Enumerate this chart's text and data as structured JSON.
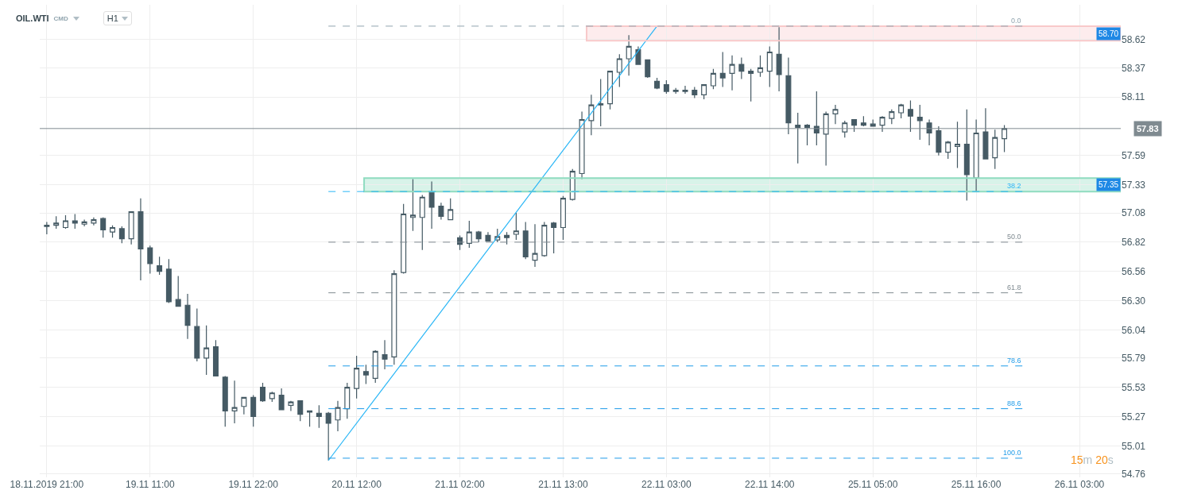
{
  "chart_data": {
    "type": "candlestick",
    "title": "OIL.WTI",
    "subtitle": "CMD",
    "annotations": [
      "H1",
      "15m 20s",
      {
        "text": "0.0",
        "y": 58.74
      },
      {
        "text": "38.2",
        "y": 57.27
      },
      {
        "text": "50.0",
        "y": 56.82
      },
      {
        "text": "61.8",
        "y": 56.37
      },
      {
        "text": "78.6",
        "y": 55.72
      },
      {
        "text": "88.6",
        "y": 55.34
      },
      {
        "text": "100.0",
        "y": 54.9
      }
    ],
    "categories": [
      "18.11.2019 21:00",
      null,
      null,
      null,
      null,
      null,
      null,
      null,
      null,
      null,
      null,
      "19.11 11:00",
      null,
      null,
      null,
      null,
      null,
      null,
      null,
      null,
      null,
      null,
      "19.11 22:00",
      null,
      null,
      null,
      null,
      null,
      null,
      null,
      null,
      null,
      null,
      "20.11 12:00",
      null,
      null,
      null,
      null,
      null,
      null,
      null,
      null,
      null,
      null,
      "21.11 02:00",
      null,
      null,
      null,
      null,
      null,
      null,
      null,
      null,
      null,
      null,
      "21.11 13:00",
      null,
      null,
      null,
      null,
      null,
      null,
      null,
      null,
      null,
      null,
      "22.11 03:00",
      null,
      null,
      null,
      null,
      null,
      null,
      null,
      null,
      null,
      null,
      "22.11 14:00",
      null,
      null,
      null,
      null,
      null,
      null,
      null,
      null,
      null,
      null,
      "25.11 05:00",
      null,
      null,
      null,
      null,
      null,
      null,
      null,
      null,
      null,
      null,
      "25.11 16:00",
      null,
      null,
      null,
      null,
      null,
      null,
      null,
      null,
      null,
      null,
      "26.11 03:00",
      null,
      null,
      null,
      null
    ],
    "color": "#455a64",
    "ohlc": [
      [
        56.96,
        57.0,
        56.89,
        56.97
      ],
      [
        56.97,
        57.05,
        56.94,
        56.99
      ],
      [
        56.95,
        57.06,
        56.94,
        57.01
      ],
      [
        57.01,
        57.07,
        56.94,
        56.99
      ],
      [
        56.98,
        57.02,
        56.96,
        57.0
      ],
      [
        56.99,
        57.04,
        56.97,
        57.02
      ],
      [
        57.03,
        57.04,
        56.86,
        56.93
      ],
      [
        56.91,
        56.97,
        56.86,
        56.95
      ],
      [
        56.94,
        56.96,
        56.81,
        56.85
      ],
      [
        56.85,
        57.09,
        56.8,
        57.09
      ],
      [
        57.09,
        57.21,
        56.48,
        56.76
      ],
      [
        56.77,
        56.79,
        56.54,
        56.63
      ],
      [
        56.61,
        56.69,
        56.53,
        56.56
      ],
      [
        56.58,
        56.67,
        56.28,
        56.29
      ],
      [
        56.31,
        56.52,
        56.25,
        56.25
      ],
      [
        56.26,
        56.36,
        55.96,
        56.08
      ],
      [
        56.07,
        56.23,
        55.76,
        55.79
      ],
      [
        55.79,
        56.08,
        55.64,
        55.88
      ],
      [
        55.89,
        55.95,
        55.63,
        55.63
      ],
      [
        55.62,
        55.63,
        55.18,
        55.32
      ],
      [
        55.32,
        55.59,
        55.21,
        55.35
      ],
      [
        55.36,
        55.44,
        55.29,
        55.44
      ],
      [
        55.44,
        55.46,
        55.18,
        55.27
      ],
      [
        55.53,
        55.57,
        55.4,
        55.41
      ],
      [
        55.43,
        55.49,
        55.4,
        55.48
      ],
      [
        55.46,
        55.52,
        55.33,
        55.33
      ],
      [
        55.37,
        55.41,
        55.32,
        55.4
      ],
      [
        55.41,
        55.41,
        55.23,
        55.29
      ],
      [
        55.32,
        55.32,
        55.18,
        55.31
      ],
      [
        55.3,
        55.37,
        55.17,
        55.27
      ],
      [
        55.3,
        55.31,
        54.88,
        55.21
      ],
      [
        55.24,
        55.41,
        55.14,
        55.35
      ],
      [
        55.34,
        55.57,
        55.25,
        55.53
      ],
      [
        55.52,
        55.81,
        55.43,
        55.7
      ],
      [
        55.67,
        55.73,
        55.56,
        55.64
      ],
      [
        55.61,
        55.86,
        55.57,
        55.85
      ],
      [
        55.82,
        55.95,
        55.69,
        55.78
      ],
      [
        55.8,
        56.57,
        55.73,
        56.54
      ],
      [
        56.55,
        57.16,
        56.54,
        57.07
      ],
      [
        57.04,
        57.38,
        56.92,
        57.06
      ],
      [
        57.04,
        57.24,
        56.75,
        57.22
      ],
      [
        57.26,
        57.36,
        56.94,
        57.13
      ],
      [
        57.14,
        57.17,
        57.02,
        57.05
      ],
      [
        57.02,
        57.21,
        57.02,
        57.11
      ],
      [
        56.86,
        56.88,
        56.75,
        56.8
      ],
      [
        56.81,
        57.01,
        56.77,
        56.91
      ],
      [
        56.91,
        56.92,
        56.82,
        56.85
      ],
      [
        56.88,
        56.91,
        56.83,
        56.83
      ],
      [
        56.84,
        56.94,
        56.82,
        56.87
      ],
      [
        56.88,
        56.91,
        56.8,
        56.86
      ],
      [
        56.89,
        57.08,
        56.84,
        56.92
      ],
      [
        56.92,
        57.0,
        56.67,
        56.69
      ],
      [
        56.66,
        56.98,
        56.6,
        56.72
      ],
      [
        56.7,
        57.0,
        56.69,
        56.97
      ],
      [
        56.99,
        57.0,
        56.72,
        56.95
      ],
      [
        56.95,
        57.23,
        56.84,
        57.21
      ],
      [
        57.2,
        57.47,
        57.19,
        57.45
      ],
      [
        57.43,
        57.98,
        57.38,
        57.91
      ],
      [
        57.9,
        58.13,
        57.77,
        58.04
      ],
      [
        58.05,
        58.27,
        57.85,
        58.04
      ],
      [
        58.05,
        58.34,
        58.0,
        58.34
      ],
      [
        58.33,
        58.49,
        58.2,
        58.45
      ],
      [
        58.45,
        58.66,
        58.3,
        58.56
      ],
      [
        58.53,
        58.56,
        58.4,
        58.4
      ],
      [
        58.44,
        58.44,
        58.28,
        58.29
      ],
      [
        58.25,
        58.28,
        58.18,
        58.19
      ],
      [
        58.22,
        58.26,
        58.14,
        58.16
      ],
      [
        58.17,
        58.19,
        58.14,
        58.16
      ],
      [
        58.17,
        58.21,
        58.14,
        58.16
      ],
      [
        58.17,
        58.2,
        58.1,
        58.13
      ],
      [
        58.13,
        58.22,
        58.09,
        58.22
      ],
      [
        58.21,
        58.36,
        58.18,
        58.32
      ],
      [
        58.32,
        58.51,
        58.2,
        58.28
      ],
      [
        58.32,
        58.48,
        58.17,
        58.4
      ],
      [
        58.4,
        58.46,
        58.27,
        58.34
      ],
      [
        58.34,
        58.36,
        58.07,
        58.32
      ],
      [
        58.33,
        58.48,
        58.29,
        58.37
      ],
      [
        58.34,
        58.56,
        58.2,
        58.51
      ],
      [
        58.49,
        58.73,
        58.16,
        58.31
      ],
      [
        58.3,
        58.46,
        57.78,
        57.88
      ],
      [
        57.86,
        57.97,
        57.52,
        57.84
      ],
      [
        57.86,
        57.87,
        57.68,
        57.84
      ],
      [
        57.85,
        58.16,
        57.68,
        57.79
      ],
      [
        57.78,
        57.98,
        57.5,
        57.96
      ],
      [
        57.96,
        58.04,
        57.87,
        58.0
      ],
      [
        57.8,
        57.9,
        57.75,
        57.88
      ],
      [
        57.91,
        57.91,
        57.8,
        57.86
      ],
      [
        57.88,
        57.94,
        57.85,
        57.86
      ],
      [
        57.87,
        57.91,
        57.85,
        57.85
      ],
      [
        57.86,
        57.94,
        57.8,
        57.93
      ],
      [
        57.92,
        58.0,
        57.87,
        57.98
      ],
      [
        57.97,
        58.05,
        57.92,
        58.04
      ],
      [
        58.0,
        58.08,
        57.8,
        57.94
      ],
      [
        57.93,
        58.04,
        57.73,
        57.9
      ],
      [
        57.88,
        57.91,
        57.68,
        57.79
      ],
      [
        57.81,
        57.85,
        57.59,
        57.62
      ],
      [
        57.62,
        57.72,
        57.56,
        57.71
      ],
      [
        57.67,
        57.89,
        57.48,
        57.69
      ],
      [
        57.69,
        58.0,
        57.19,
        57.42
      ],
      [
        57.39,
        57.91,
        57.27,
        57.79
      ],
      [
        57.8,
        58.01,
        57.56,
        57.56
      ],
      [
        57.57,
        57.82,
        57.47,
        57.75
      ],
      [
        57.74,
        57.86,
        57.62,
        57.83
      ],
      null,
      null,
      null,
      null,
      null,
      null,
      null,
      null,
      null,
      null,
      null,
      null
    ],
    "series": [
      {
        "type": "line",
        "color": "#29b6f6",
        "values": [
          null,
          null,
          null,
          null,
          null,
          null,
          null,
          null,
          null,
          null,
          null,
          null,
          null,
          null,
          null,
          null,
          null,
          null,
          null,
          null,
          null,
          null,
          null,
          null,
          null,
          null,
          null,
          null,
          null,
          null,
          54.88,
          null,
          null,
          null,
          null,
          null,
          null,
          null,
          null,
          null,
          null,
          null,
          null,
          null,
          null,
          null,
          null,
          null,
          null,
          null,
          null,
          null,
          null,
          null,
          null,
          null,
          null,
          null,
          null,
          null,
          null,
          null,
          null,
          null,
          null,
          58.74,
          null,
          null,
          null,
          null,
          null,
          null,
          null,
          null,
          null,
          null,
          null,
          null,
          null,
          null,
          null,
          null,
          null,
          null,
          null,
          null,
          null,
          null,
          null,
          null,
          null,
          null,
          null,
          null,
          null,
          null,
          null,
          null,
          null,
          null,
          null,
          null,
          null,
          null,
          null,
          null,
          null,
          null,
          null,
          null,
          null,
          null,
          null,
          null,
          null
        ]
      }
    ],
    "ylim": [
      54.73,
      58.93
    ],
    "yticks": [
      54.76,
      55.01,
      55.27,
      55.53,
      55.79,
      56.04,
      {
        "value": 56.3,
        "label": "56.30"
      },
      56.56,
      56.82,
      57.08,
      57.33,
      57.59,
      58.11,
      58.37,
      58.62
    ],
    "ref_lines": [
      {
        "axis": "y",
        "value": 58.74,
        "color": "#90a4ae",
        "line_style": "dashed"
      },
      {
        "axis": "y",
        "value": 57.27,
        "color": "#29b6f6",
        "line_style": "dashed"
      },
      {
        "axis": "y",
        "value": 56.82,
        "color": "#7f8a90",
        "line_style": "dashed"
      },
      {
        "axis": "y",
        "value": 56.37,
        "color": "#7f8a90",
        "line_style": "dashed"
      },
      {
        "axis": "y",
        "value": 55.72,
        "color": "#1e9be9",
        "line_style": "dashed"
      },
      {
        "axis": "y",
        "value": 55.34,
        "color": "#1e9be9",
        "line_style": "dashed"
      },
      {
        "axis": "y",
        "value": 54.9,
        "color": "#1e9be9",
        "line_style": "dashed"
      },
      {
        "axis": "y",
        "value": 57.83,
        "label": "57.83",
        "color": "#7f8a90",
        "line_style": "solid"
      }
    ],
    "bands": [
      {
        "axis": "y",
        "from": 58.61,
        "to": 58.74,
        "label": "58.70",
        "color": "#f8c9ca"
      },
      {
        "axis": "y",
        "from": 57.27,
        "to": 57.39,
        "label": "57.35",
        "color": "#8fdcc0"
      }
    ],
    "grid": true
  }
}
